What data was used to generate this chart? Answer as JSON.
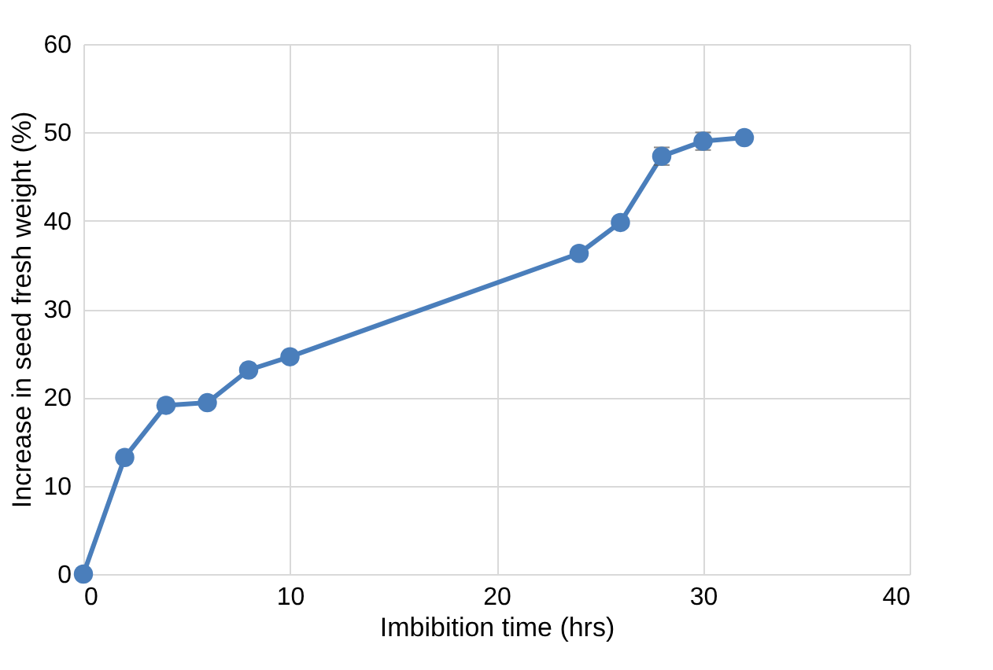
{
  "chart_data": {
    "type": "line",
    "xlabel": "Imbibition time (hrs)",
    "ylabel": "Increase in seed fresh weight (%)",
    "x": [
      0,
      2,
      4,
      6,
      8,
      10,
      24,
      26,
      28,
      30,
      32
    ],
    "series": [
      {
        "color": "#4a7ebb",
        "values": [
          0,
          13.2,
          19.1,
          19.4,
          23.1,
          24.6,
          36.3,
          39.8,
          47.3,
          49.0,
          49.4
        ],
        "errors": [
          null,
          null,
          null,
          null,
          null,
          null,
          null,
          null,
          1,
          1,
          null
        ]
      }
    ],
    "xlim": [
      0,
      40
    ],
    "xticks": [
      0,
      10,
      20,
      30,
      40
    ],
    "ylim": [
      0,
      60
    ],
    "yticks": [
      0,
      10,
      20,
      30,
      40,
      50,
      60
    ],
    "grid": true,
    "marker": "circle",
    "line_style": "solid"
  }
}
